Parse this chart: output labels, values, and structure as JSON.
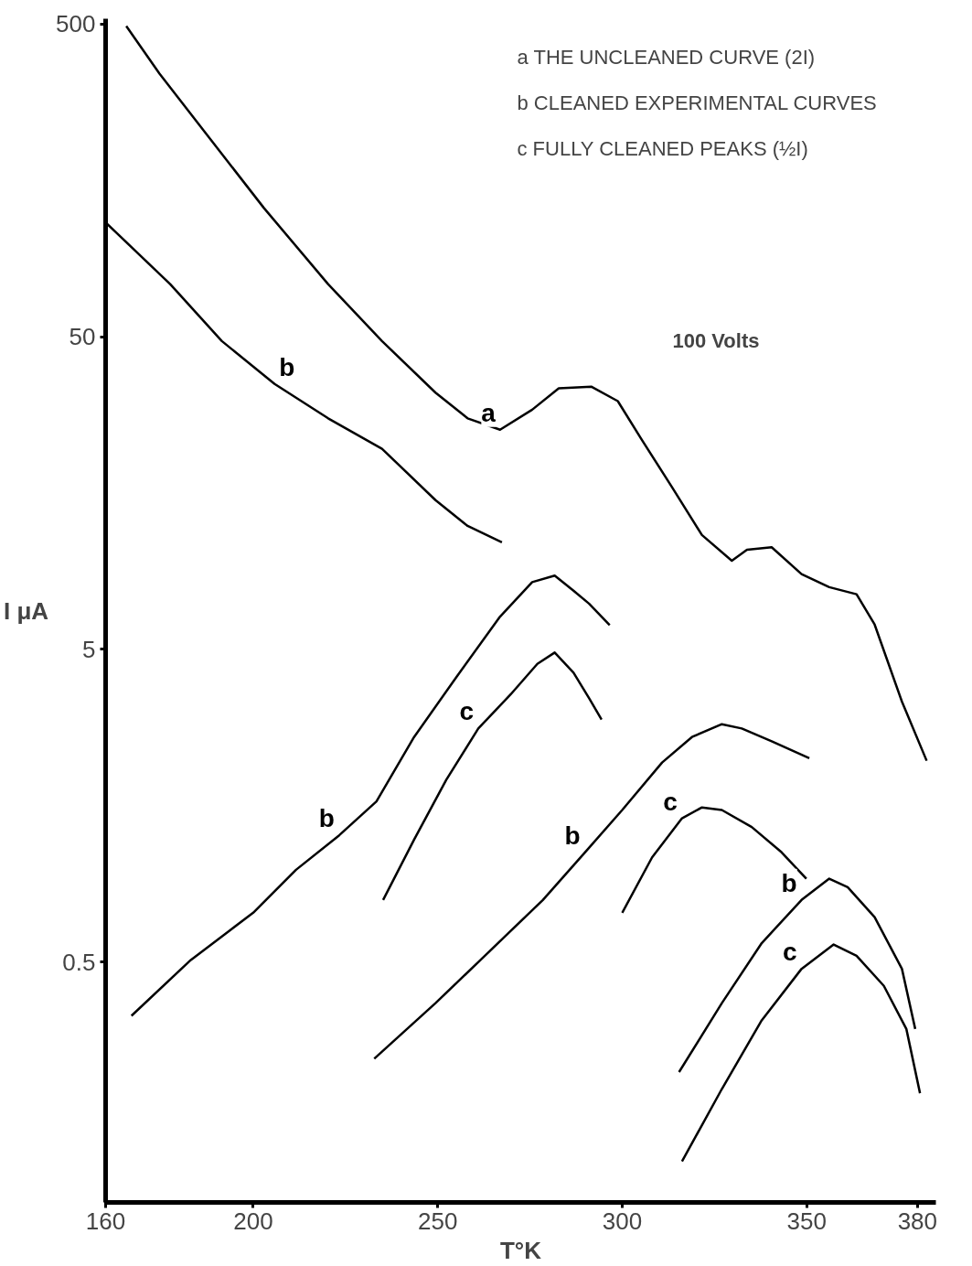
{
  "chart_data": {
    "type": "line",
    "xlabel": "T°K",
    "ylabel": "I μA",
    "log": "y",
    "grid": false,
    "legend": false,
    "marker": "none",
    "line_style": "solid",
    "xlim": [
      160,
      385
    ],
    "ylim": [
      0.085,
      520
    ],
    "xticks": [
      160,
      200,
      250,
      300,
      350,
      380
    ],
    "yticks": [
      0.5,
      5,
      50,
      500
    ],
    "series": [
      {
        "name": "a",
        "color": "#000000",
        "x": [
          165.6,
          174.6,
          188.7,
          202.9,
          220.3,
          234.9,
          249.4,
          258.1,
          266.9,
          275.6,
          282.8,
          291.6,
          298.8,
          305.4,
          313.5,
          321.6,
          329.7,
          333.8,
          340.5,
          348.6,
          356.1,
          363.5,
          368.4,
          375.8,
          382.5
        ],
        "values": [
          493,
          347,
          212,
          129,
          73.6,
          48.4,
          33.1,
          27.4,
          25.2,
          29.2,
          34.2,
          34.6,
          31.1,
          23.3,
          16.5,
          11.6,
          9.6,
          10.4,
          10.6,
          8.7,
          7.9,
          7.5,
          6.0,
          3.4,
          2.2
        ]
      },
      {
        "name": "b",
        "color": "#000000",
        "x": [
          160,
          177.5,
          191.5,
          205.8,
          220.3,
          234.9,
          249.4,
          258.1,
          267.4
        ],
        "values": [
          116,
          73.6,
          48.4,
          35.3,
          27.4,
          21.9,
          15.0,
          12.4,
          11.0
        ]
      },
      {
        "name": "b",
        "color": "#000000",
        "x": [
          167.0,
          183.1,
          200,
          211.6,
          223.3,
          233.4,
          243.6,
          255.1,
          266.9,
          275.6,
          281.7,
          286.8,
          291.0,
          296.6
        ],
        "values": [
          0.336,
          0.507,
          0.718,
          0.985,
          1.27,
          1.63,
          2.62,
          4.08,
          6.36,
          8.2,
          8.6,
          7.7,
          7.0,
          5.97
        ]
      },
      {
        "name": "c",
        "color": "#000000",
        "x": [
          235.2,
          243.6,
          252.3,
          261.0,
          269.8,
          277.0,
          281.7,
          286.8,
          291.0,
          294.4
        ],
        "values": [
          0.789,
          1.23,
          1.91,
          2.79,
          3.59,
          4.49,
          4.88,
          4.21,
          3.49,
          2.98
        ]
      },
      {
        "name": "b",
        "color": "#000000",
        "x": [
          232.8,
          249.4,
          264.0,
          278.5,
          289.9,
          300,
          310.8,
          318.9,
          327.0,
          332.4,
          340.5,
          350.7
        ],
        "values": [
          0.245,
          0.369,
          0.54,
          0.789,
          1.12,
          1.53,
          2.17,
          2.62,
          2.88,
          2.79,
          2.54,
          2.24
        ]
      },
      {
        "name": "c",
        "color": "#000000",
        "x": [
          300,
          308.1,
          316.2,
          321.6,
          327.0,
          335.1,
          343.2,
          349.9
        ],
        "values": [
          0.718,
          1.08,
          1.44,
          1.56,
          1.53,
          1.35,
          1.12,
          0.923
        ]
      },
      {
        "name": "b",
        "color": "#000000",
        "x": [
          315.4,
          327.0,
          337.8,
          348.6,
          356.1,
          361.1,
          368.4,
          375.8,
          379.4
        ],
        "values": [
          0.222,
          0.369,
          0.574,
          0.789,
          0.923,
          0.867,
          0.695,
          0.475,
          0.305
        ]
      },
      {
        "name": "c",
        "color": "#000000",
        "x": [
          316.2,
          327.0,
          337.8,
          348.6,
          357.3,
          363.5,
          370.9,
          377.0,
          380.7
        ],
        "values": [
          0.115,
          0.196,
          0.325,
          0.475,
          0.568,
          0.523,
          0.419,
          0.305,
          0.19
        ]
      }
    ],
    "annotations": [
      "a  THE UNCLEANED CURVE (2I)",
      "b  CLEANED EXPERIMENTAL CURVES",
      "c  FULLY CLEANED PEAKS (½I)",
      "100 Volts"
    ]
  }
}
